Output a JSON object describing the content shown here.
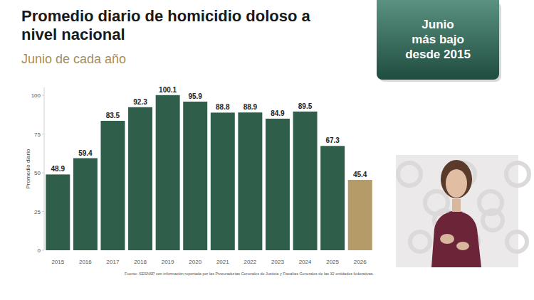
{
  "chart_data": {
    "type": "bar",
    "title": "Promedio diario de homicidio doloso a nivel nacional",
    "subtitle": "Junio de cada año",
    "badge": [
      "Junio",
      "más bajo",
      "desde 2015"
    ],
    "y_label": "Promedio diario",
    "source": "Fuente: SESNSP con información reportada por las Procuradurías Generales de Justicia y Fiscalías Generales de las 32 entidades federativas.",
    "categories": [
      "2015",
      "2016",
      "2017",
      "2018",
      "2019",
      "2020",
      "2021",
      "2022",
      "2023",
      "2024",
      "2025",
      "2026"
    ],
    "values": [
      48.9,
      59.4,
      83.5,
      92.3,
      100.1,
      95.9,
      88.8,
      88.9,
      84.9,
      89.5,
      67.3,
      45.4
    ],
    "colors": [
      "#2f5f4b",
      "#2f5f4b",
      "#2f5f4b",
      "#2f5f4b",
      "#2f5f4b",
      "#2f5f4b",
      "#2f5f4b",
      "#2f5f4b",
      "#2f5f4b",
      "#2f5f4b",
      "#2f5f4b",
      "#b59b68"
    ],
    "ylim": [
      0,
      105
    ],
    "yticks": [
      0,
      25,
      50,
      75,
      100
    ],
    "grid": false,
    "data_labels": true
  }
}
